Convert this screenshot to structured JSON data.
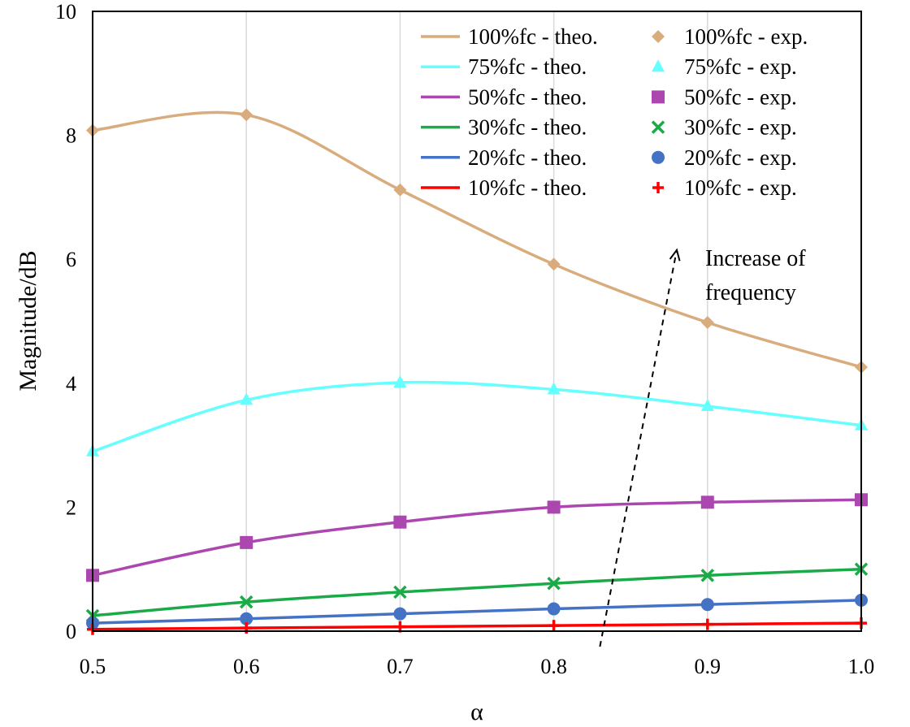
{
  "chart_data": {
    "type": "line",
    "title": "",
    "xlabel": "α",
    "ylabel": "Magnitude/dB",
    "xlim": [
      0.5,
      1.0
    ],
    "ylim": [
      0,
      10
    ],
    "xticks": [
      0.5,
      0.6,
      0.7,
      0.8,
      0.9,
      1.0
    ],
    "xtick_labels": [
      "0.5",
      "0.6",
      "0.7",
      "0.8",
      "0.9",
      "1.0"
    ],
    "yticks": [
      0,
      2,
      4,
      6,
      8,
      10
    ],
    "ytick_labels": [
      "0",
      "2",
      "4",
      "6",
      "8",
      "10"
    ],
    "grid": "vertical",
    "legend_position": "top-right",
    "x": [
      0.5,
      0.6,
      0.7,
      0.8,
      0.9,
      1.0
    ],
    "series": [
      {
        "name": "100%fc",
        "theo_label": "100%fc - theo.",
        "exp_label": "100%fc - exp.",
        "color": "#D9AC7E",
        "marker": "diamond",
        "values": [
          8.08,
          8.33,
          7.12,
          5.92,
          4.98,
          4.26
        ]
      },
      {
        "name": "75%fc",
        "theo_label": "75%fc - theo.",
        "exp_label": "75%fc - exp.",
        "color": "#66FFFF",
        "marker": "triangle",
        "values": [
          2.9,
          3.73,
          4.01,
          3.9,
          3.63,
          3.32
        ]
      },
      {
        "name": "50%fc",
        "theo_label": "50%fc - theo.",
        "exp_label": "50%fc - exp.",
        "color": "#AB47AF",
        "marker": "square",
        "values": [
          0.9,
          1.43,
          1.76,
          2.0,
          2.08,
          2.12
        ]
      },
      {
        "name": "30%fc",
        "theo_label": "30%fc - theo.",
        "exp_label": "30%fc - exp.",
        "color": "#1AAA47",
        "marker": "cross",
        "values": [
          0.25,
          0.47,
          0.63,
          0.77,
          0.9,
          1.0
        ]
      },
      {
        "name": "20%fc",
        "theo_label": "20%fc - theo.",
        "exp_label": "20%fc - exp.",
        "color": "#4472C4",
        "marker": "circle",
        "values": [
          0.13,
          0.2,
          0.28,
          0.36,
          0.43,
          0.5
        ]
      },
      {
        "name": "10%fc",
        "theo_label": "10%fc - theo.",
        "exp_label": "10%fc - exp.",
        "color": "#FF0000",
        "marker": "plus",
        "values": [
          0.03,
          0.05,
          0.07,
          0.09,
          0.11,
          0.13
        ]
      }
    ],
    "annotation": {
      "line1": "Increase of",
      "line2": "frequency",
      "arrow_from": [
        0.83,
        -0.25
      ],
      "arrow_to": [
        0.88,
        6.15
      ]
    }
  }
}
